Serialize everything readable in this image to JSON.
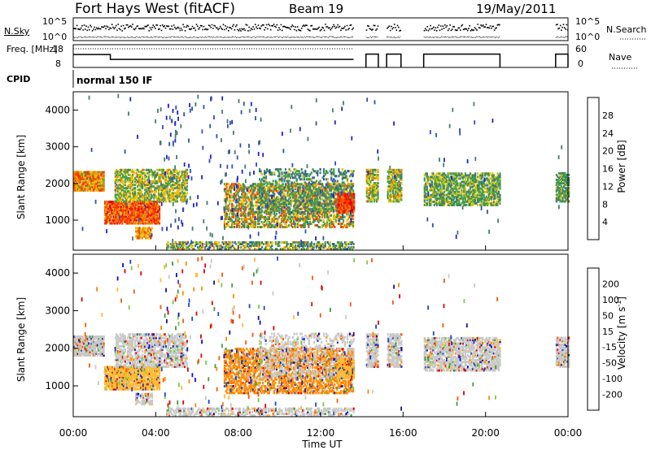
{
  "header": {
    "station": "Fort Hays West (fitACF)",
    "beam": "Beam 19",
    "date": "19/May/2011"
  },
  "colors": {
    "power_scale": [
      "#1f1fcc",
      "#2e4fb0",
      "#3f7f6a",
      "#4aa04a",
      "#e0c000",
      "#f08000",
      "#ff3000",
      "#e00000"
    ],
    "velocity_scale": [
      "#1010aa",
      "#2244cc",
      "#449944",
      "#77cc44",
      "#c8c8c8",
      "#ffbb33",
      "#ff8800",
      "#ff5500",
      "#dd0000"
    ]
  },
  "chart_data": [
    {
      "type": "line",
      "panel": "noise",
      "ylabel_left": "N.Sky",
      "ylabel_right": "N.Search",
      "left_ticks": [
        "10^5",
        "10^0"
      ],
      "right_ticks": [
        "10^5",
        "10^0"
      ],
      "xlim": [
        0,
        24
      ],
      "gaps_hours": [
        [
          13.6,
          14.2
        ],
        [
          14.8,
          15.2
        ],
        [
          15.9,
          17.0
        ],
        [
          20.7,
          23.4
        ]
      ]
    },
    {
      "type": "line",
      "panel": "frequency",
      "ylabel_left": "Freq. [MHz]",
      "ylabel_right": "Nave",
      "left_ticks": [
        "18",
        "8"
      ],
      "right_ticks": [
        "60",
        "0"
      ],
      "series": [
        {
          "name": "Freq.",
          "x": [
            0,
            1.8,
            1.8,
            13.6
          ],
          "values": [
            13.5,
            13.5,
            10.3,
            10.3
          ]
        }
      ]
    },
    {
      "type": "table",
      "panel": "cpid",
      "label": "CPID",
      "value": "normal 150 IF"
    },
    {
      "type": "heatmap",
      "panel": "power",
      "ylabel": "Slant Range [km]",
      "ylim": [
        180,
        4500
      ],
      "yticks": [
        "1000",
        "2000",
        "3000",
        "4000"
      ],
      "colorbar_label": "Power [dB]",
      "colorbar_ticks": [
        "4",
        "8",
        "12",
        "16",
        "20",
        "24",
        "28"
      ],
      "clim": [
        0,
        30
      ]
    },
    {
      "type": "heatmap",
      "panel": "velocity",
      "ylabel": "Slant Range [km]",
      "ylim": [
        180,
        4500
      ],
      "yticks": [
        "1000",
        "2000",
        "3000",
        "4000"
      ],
      "colorbar_label": "Velocity [m s^-1]",
      "colorbar_ticks": [
        "200",
        "100",
        "50",
        "15",
        "-15",
        "-50",
        "-100",
        "-200"
      ],
      "xticks": [
        "00:00",
        "04:00",
        "08:00",
        "12:00",
        "16:00",
        "20:00",
        "00:00"
      ],
      "xlabel": "Time UT"
    }
  ]
}
